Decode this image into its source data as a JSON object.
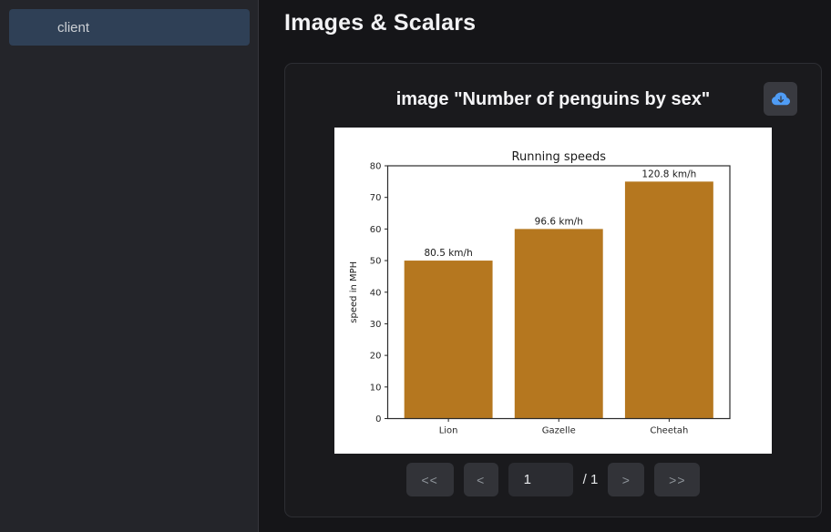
{
  "sidebar": {
    "items": [
      {
        "label": "client",
        "selected": true
      }
    ]
  },
  "header": {
    "title": "Images & Scalars"
  },
  "card": {
    "title": "image \"Number of penguins by sex\"",
    "download_icon": "cloud-download-icon"
  },
  "pagination": {
    "first_label": "<<",
    "prev_label": "<",
    "page_value": "1",
    "total_label": "/ 1",
    "next_label": ">",
    "last_label": ">>"
  },
  "colors": {
    "accent_blue": "#4f9cf5",
    "selected_item_bg": "#2f4056",
    "bar_color": "#b5771f",
    "card_bg": "#1a1a1d",
    "sidebar_bg": "#24252a",
    "main_bg": "#151518"
  },
  "chart_data": {
    "type": "bar",
    "title": "Running speeds",
    "categories": [
      "Lion",
      "Gazelle",
      "Cheetah"
    ],
    "values": [
      50,
      60,
      75
    ],
    "bar_labels": [
      "80.5 km/h",
      "96.6 km/h",
      "120.8 km/h"
    ],
    "xlabel": "",
    "ylabel": "speed in MPH",
    "ylim": [
      0,
      80
    ],
    "yticks": [
      0,
      10,
      20,
      30,
      40,
      50,
      60,
      70,
      80
    ],
    "bar_color": "#b5771f",
    "background": "#ffffff",
    "grid": false,
    "legend": false
  }
}
